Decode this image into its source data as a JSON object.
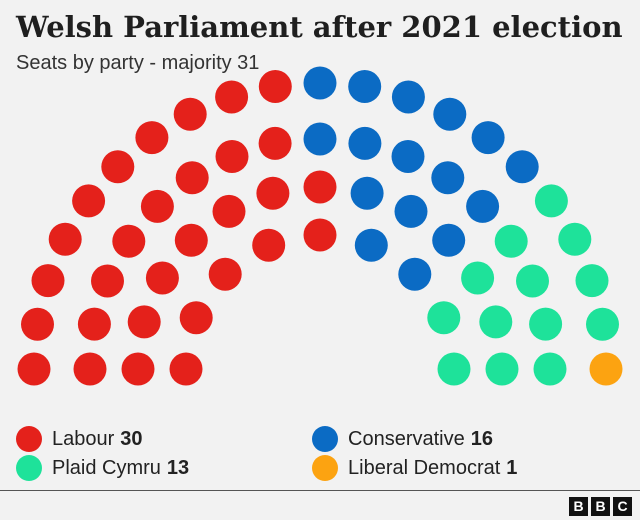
{
  "header": {
    "title": "Welsh Parliament after 2021 election",
    "subtitle": "Seats by party - majority 31"
  },
  "chart_data": {
    "type": "parliament",
    "title": "Welsh Parliament after 2021 election",
    "subtitle": "Seats by party - majority 31",
    "total_seats": 60,
    "majority": 31,
    "legend_placement": "bottom",
    "series": [
      {
        "name": "Labour",
        "seats": 30,
        "color": "#e4211b"
      },
      {
        "name": "Conservative",
        "seats": 16,
        "color": "#0b6bc4"
      },
      {
        "name": "Plaid Cymru",
        "seats": 13,
        "color": "#1ee29a"
      },
      {
        "name": "Liberal Democrat",
        "seats": 1,
        "color": "#fca311"
      }
    ]
  },
  "legend": [
    {
      "label": "Labour",
      "value": "30",
      "color": "#e4211b"
    },
    {
      "label": "Conservative",
      "value": "16",
      "color": "#0b6bc4"
    },
    {
      "label": "Plaid Cymru",
      "value": "13",
      "color": "#1ee29a"
    },
    {
      "label": "Liberal Democrat",
      "value": "1",
      "color": "#fca311"
    }
  ],
  "footer": {
    "logo_letters": [
      "B",
      "B",
      "C"
    ]
  }
}
